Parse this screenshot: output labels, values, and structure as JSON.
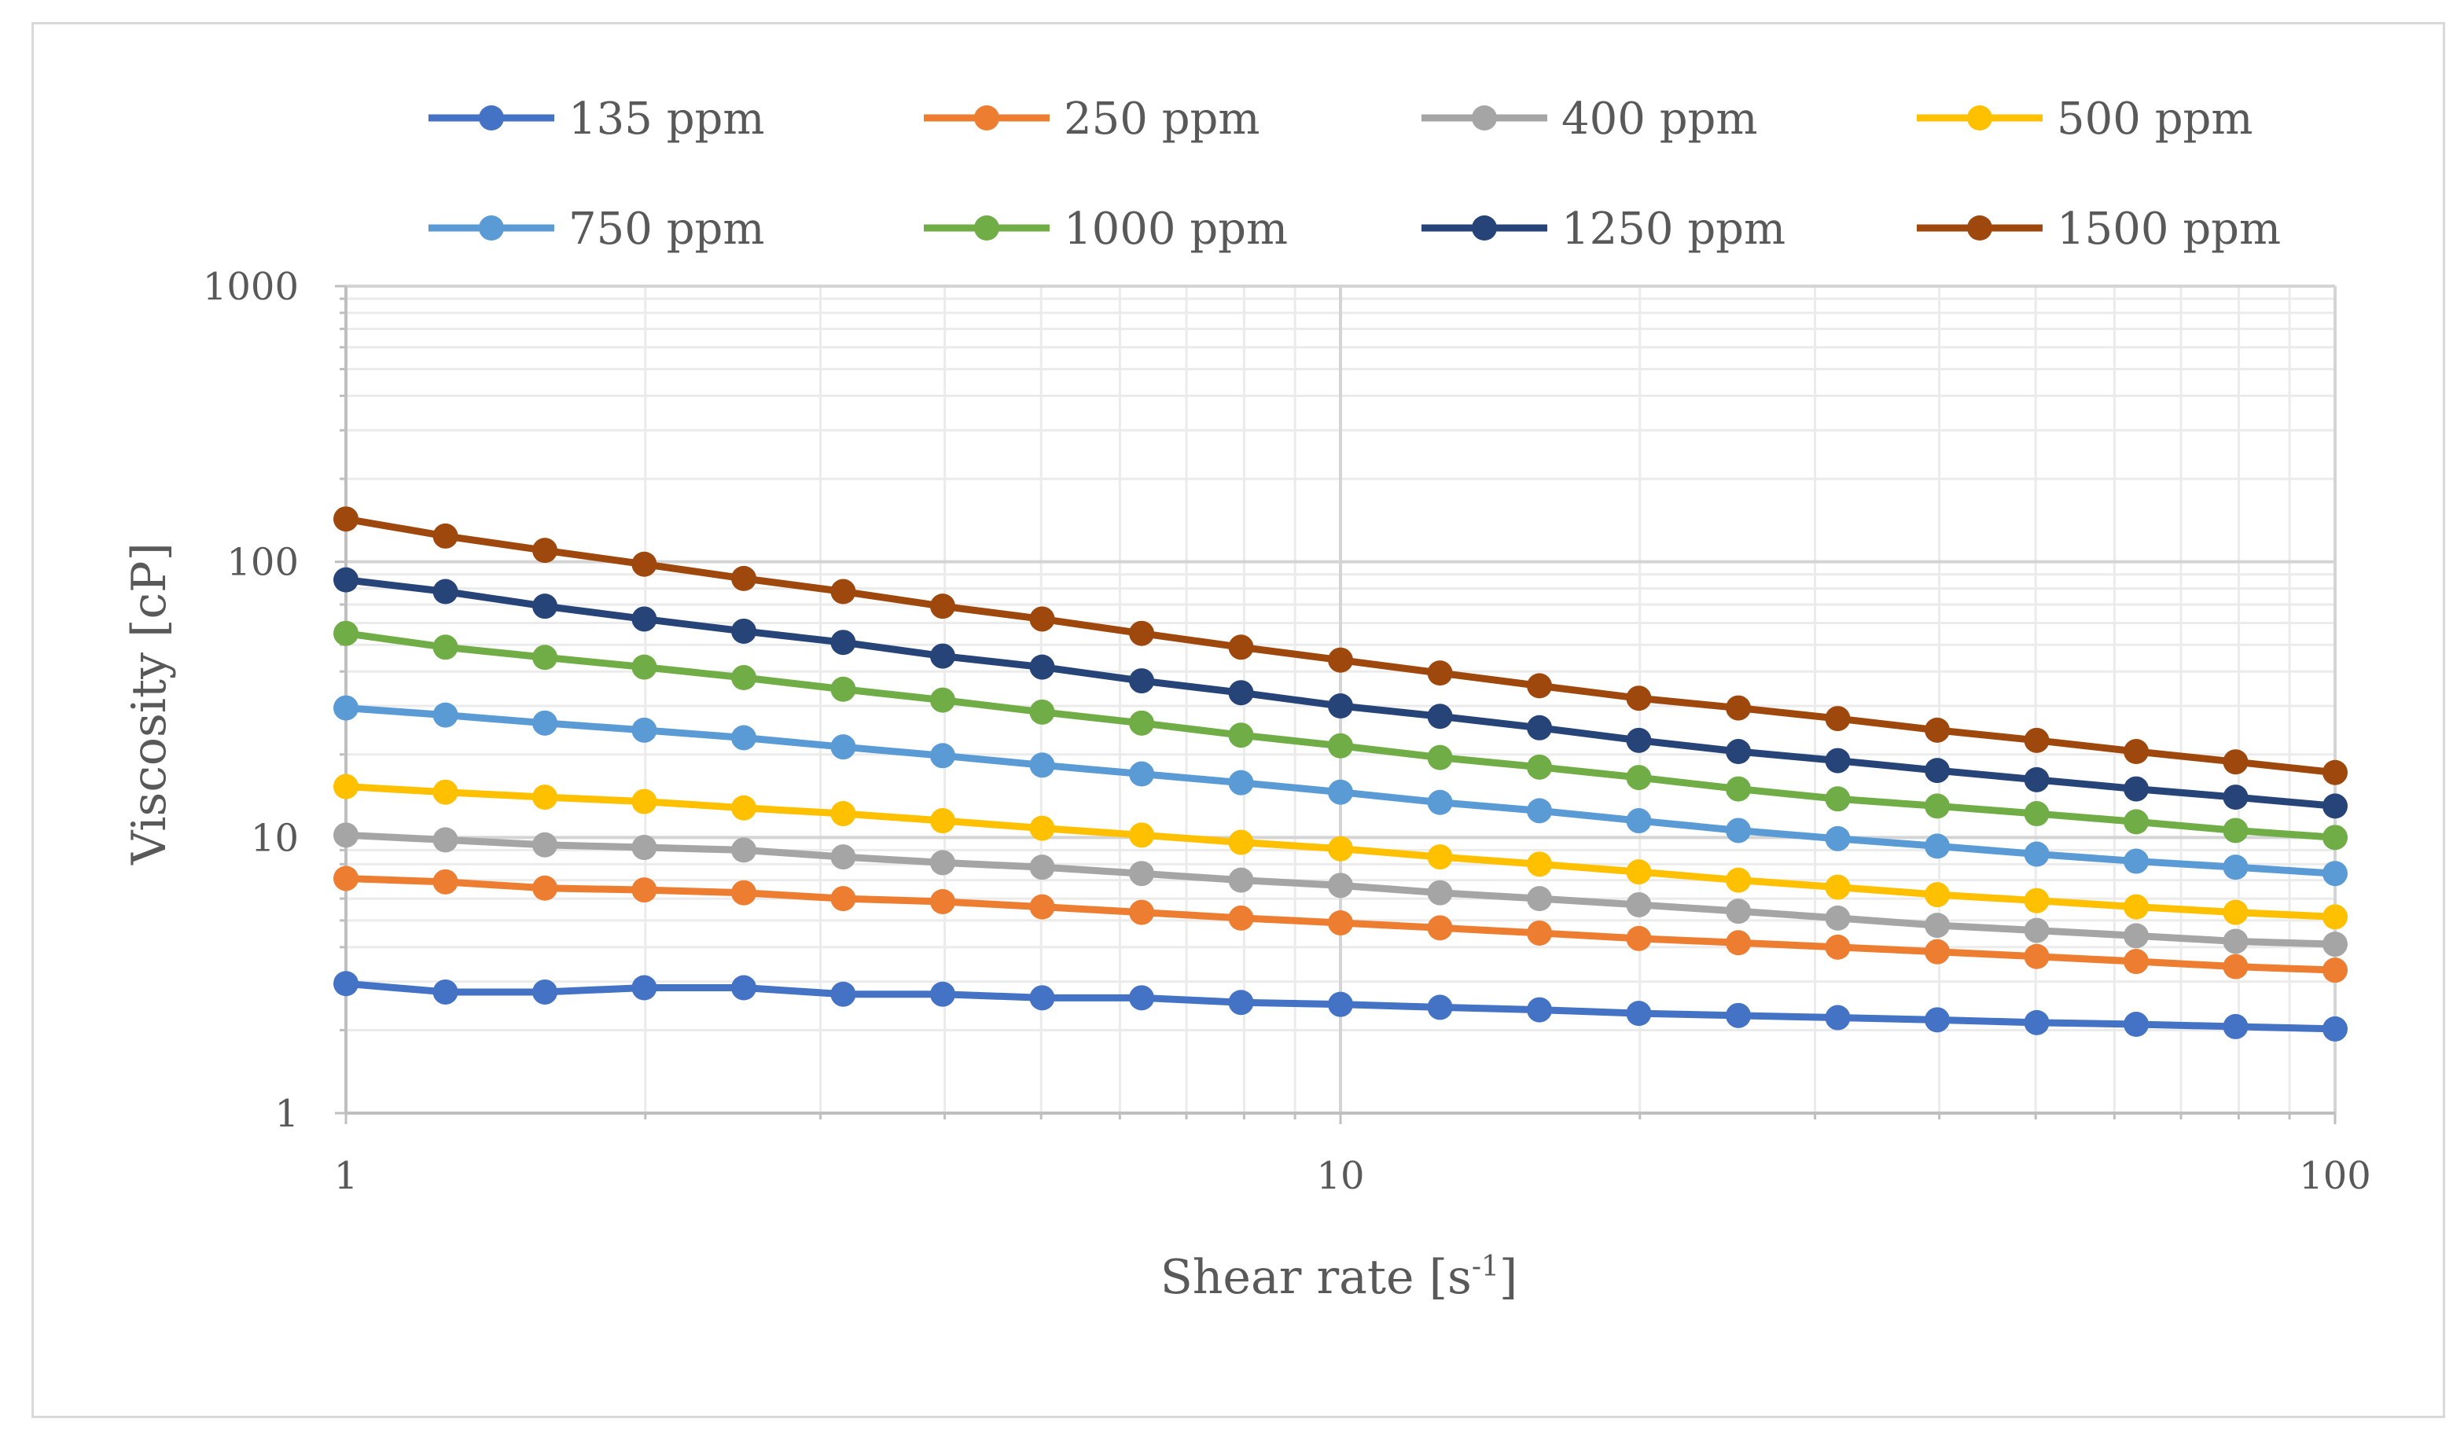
{
  "chart_data": {
    "type": "line",
    "title": "",
    "xlabel": "Shear rate [s",
    "xlabel_sup": "-1",
    "xlabel_end": "]",
    "ylabel": "Viscosity [cP]",
    "xscale": "log",
    "yscale": "log",
    "xlim": [
      1,
      100
    ],
    "ylim": [
      1,
      1000
    ],
    "x_ticks": [
      1,
      10,
      100
    ],
    "y_ticks": [
      1,
      10,
      100,
      1000
    ],
    "legend_position": "top",
    "x": [
      1,
      1.259,
      1.585,
      1.995,
      2.512,
      3.162,
      3.981,
      5.012,
      6.31,
      7.943,
      10,
      12.59,
      15.85,
      19.95,
      25.12,
      31.62,
      39.81,
      50.12,
      63.1,
      79.43,
      100
    ],
    "series": [
      {
        "name": "135 ppm",
        "color": "#4472C4",
        "values": [
          2.95,
          2.75,
          2.75,
          2.85,
          2.85,
          2.7,
          2.7,
          2.62,
          2.62,
          2.52,
          2.48,
          2.42,
          2.37,
          2.3,
          2.26,
          2.22,
          2.18,
          2.13,
          2.1,
          2.06,
          2.02
        ]
      },
      {
        "name": "250 ppm",
        "color": "#ED7D31",
        "values": [
          7.1,
          6.9,
          6.55,
          6.45,
          6.3,
          6.0,
          5.85,
          5.6,
          5.35,
          5.1,
          4.9,
          4.7,
          4.5,
          4.3,
          4.15,
          4.0,
          3.85,
          3.7,
          3.55,
          3.4,
          3.3
        ]
      },
      {
        "name": "400 ppm",
        "color": "#A5A5A5",
        "values": [
          10.2,
          9.8,
          9.4,
          9.2,
          9.0,
          8.5,
          8.1,
          7.8,
          7.4,
          7.0,
          6.7,
          6.3,
          6.0,
          5.7,
          5.4,
          5.1,
          4.8,
          4.6,
          4.4,
          4.2,
          4.1
        ]
      },
      {
        "name": "500 ppm",
        "color": "#FFC000",
        "values": [
          15.3,
          14.6,
          14.0,
          13.5,
          12.8,
          12.2,
          11.5,
          10.8,
          10.2,
          9.6,
          9.1,
          8.5,
          8.0,
          7.5,
          7.0,
          6.6,
          6.2,
          5.9,
          5.6,
          5.35,
          5.15
        ]
      },
      {
        "name": "750 ppm",
        "color": "#5B9BD5",
        "values": [
          29.5,
          27.8,
          26.0,
          24.5,
          23.0,
          21.3,
          19.8,
          18.3,
          17.0,
          15.8,
          14.6,
          13.4,
          12.5,
          11.5,
          10.6,
          9.9,
          9.3,
          8.7,
          8.2,
          7.8,
          7.4
        ]
      },
      {
        "name": "1000 ppm",
        "color": "#70AD47",
        "values": [
          55,
          49,
          45,
          41.5,
          38,
          34.5,
          31.5,
          28.5,
          26,
          23.5,
          21.5,
          19.5,
          18,
          16.5,
          15,
          13.8,
          13,
          12.2,
          11.4,
          10.6,
          10
        ]
      },
      {
        "name": "1250 ppm",
        "color": "#264478",
        "values": [
          86,
          78,
          69,
          62,
          56,
          51,
          45.5,
          41.5,
          37,
          33.5,
          30,
          27.5,
          25,
          22.5,
          20.5,
          19,
          17.5,
          16.2,
          15,
          14,
          13
        ]
      },
      {
        "name": "1500 ppm",
        "color": "#9E480E",
        "values": [
          143,
          124,
          110,
          98,
          87,
          78,
          69,
          62,
          55,
          49,
          44,
          39.5,
          35.5,
          32,
          29.5,
          27,
          24.5,
          22.5,
          20.5,
          18.8,
          17.2
        ]
      }
    ]
  }
}
